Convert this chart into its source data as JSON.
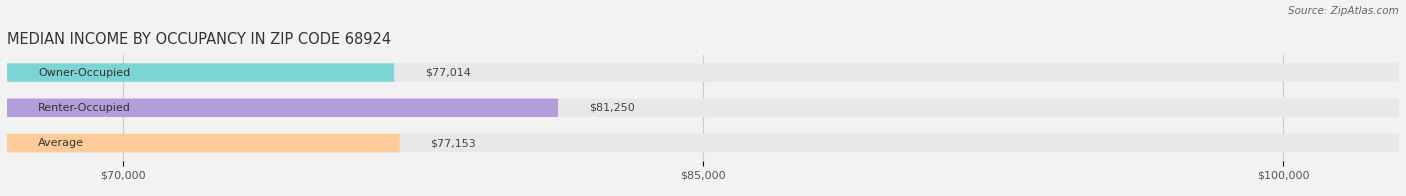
{
  "title": "MEDIAN INCOME BY OCCUPANCY IN ZIP CODE 68924",
  "source": "Source: ZipAtlas.com",
  "categories": [
    "Owner-Occupied",
    "Renter-Occupied",
    "Average"
  ],
  "values": [
    77014,
    81250,
    77153
  ],
  "bar_colors": [
    "#7dd4d4",
    "#b39ddb",
    "#ffcc99"
  ],
  "value_labels": [
    "$77,014",
    "$81,250",
    "$77,153"
  ],
  "xmin": 67000,
  "xmax": 103000,
  "xticks": [
    70000,
    85000,
    100000
  ],
  "xticklabels": [
    "$70,000",
    "$85,000",
    "$100,000"
  ],
  "background_color": "#f2f2f2",
  "bar_bg_color": "#e8e8e8",
  "title_fontsize": 10.5,
  "source_fontsize": 7.5,
  "label_fontsize": 8,
  "tick_fontsize": 8,
  "bar_height": 0.52
}
